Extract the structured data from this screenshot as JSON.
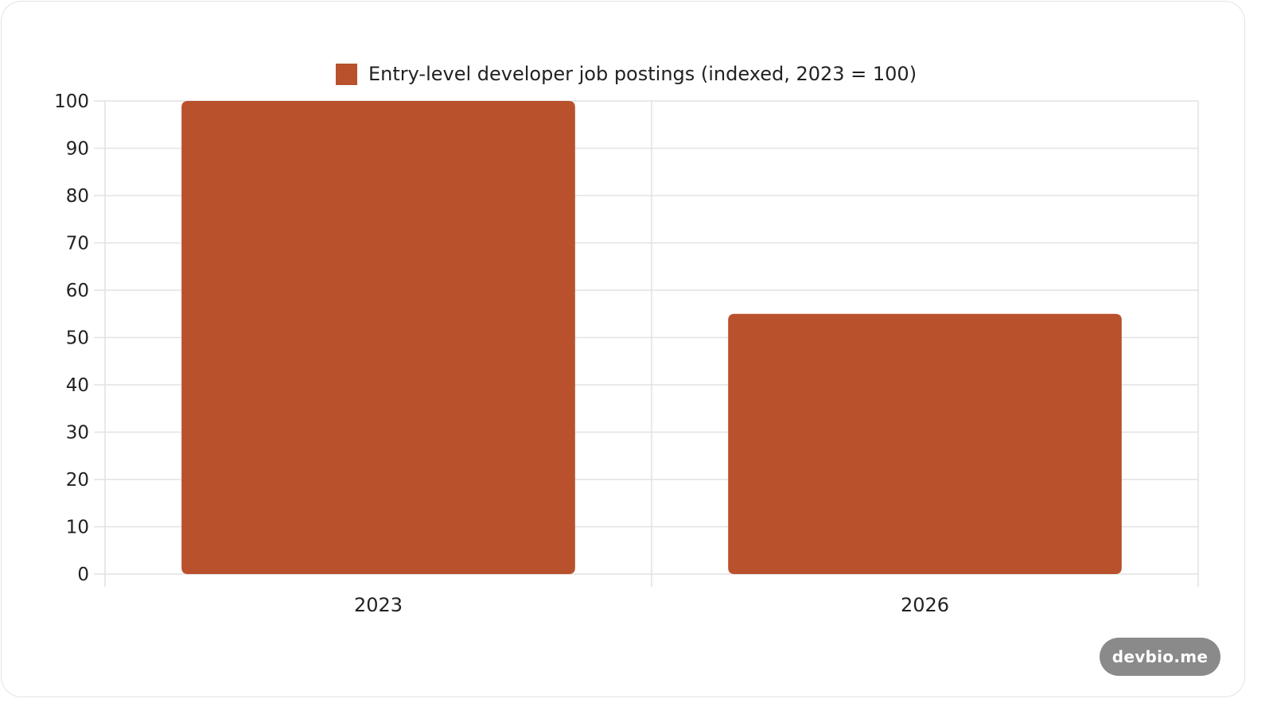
{
  "chart_data": {
    "type": "bar",
    "categories": [
      "2023",
      "2026"
    ],
    "series": [
      {
        "name": "Entry-level developer job postings (indexed, 2023 = 100)",
        "values": [
          100,
          55
        ],
        "color": "#b9512c"
      }
    ],
    "ylim": [
      0,
      100
    ],
    "yticks": [
      0,
      10,
      20,
      30,
      40,
      50,
      60,
      70,
      80,
      90,
      100
    ],
    "grid": true,
    "legend_position": "top-center"
  },
  "watermark": {
    "label": "devbio.me"
  }
}
